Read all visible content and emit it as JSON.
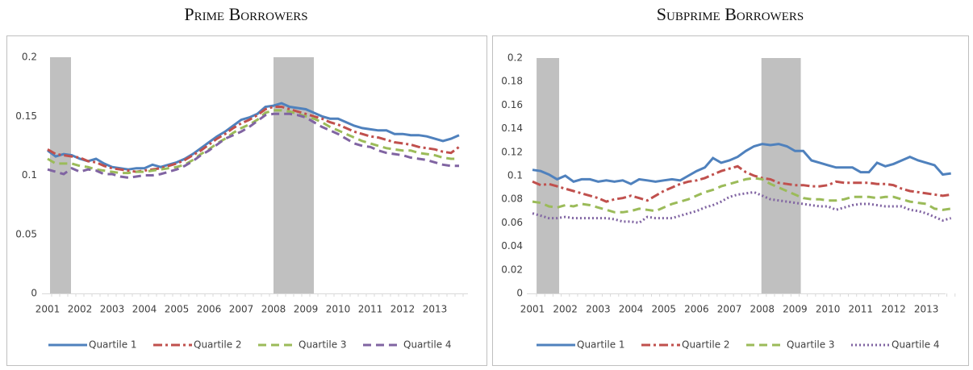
{
  "chart_data": [
    {
      "type": "line",
      "title": "Prime Borrowers",
      "categories": [
        "2001",
        null,
        null,
        null,
        "2002",
        null,
        null,
        null,
        "2003",
        null,
        null,
        null,
        "2004",
        null,
        null,
        null,
        "2005",
        null,
        null,
        null,
        "2006",
        null,
        null,
        null,
        "2007",
        null,
        null,
        null,
        "2008",
        null,
        null,
        null,
        "2009",
        null,
        null,
        null,
        "2010",
        null,
        null,
        null,
        "2011",
        null,
        null,
        null,
        "2012",
        null,
        null,
        null,
        "2013",
        null,
        null,
        null
      ],
      "ylim": [
        0,
        0.2
      ],
      "yticks": [
        0,
        0.05,
        0.1,
        0.15,
        0.2
      ],
      "shaded": [
        {
          "start": 0.3,
          "end": 2.9
        },
        {
          "start": 28,
          "end": 33
        }
      ],
      "shade_color": "#c0c0c0",
      "legend": "bottom",
      "series": [
        {
          "name": "Quartile 1",
          "color": "#4f81bd",
          "dash": "solid",
          "values": [
            0.121,
            0.116,
            0.118,
            0.117,
            0.114,
            0.112,
            0.114,
            0.11,
            0.107,
            0.106,
            0.105,
            0.106,
            0.106,
            0.109,
            0.107,
            0.109,
            0.111,
            0.114,
            0.118,
            0.123,
            0.128,
            0.133,
            0.137,
            0.142,
            0.147,
            0.149,
            0.152,
            0.158,
            0.159,
            0.161,
            0.158,
            0.157,
            0.156,
            0.153,
            0.15,
            0.148,
            0.148,
            0.145,
            0.142,
            0.14,
            0.139,
            0.138,
            0.138,
            0.135,
            0.135,
            0.134,
            0.134,
            0.133,
            0.131,
            0.129,
            0.131,
            0.134
          ]
        },
        {
          "name": "Quartile 2",
          "color": "#c0504d",
          "dash": "dashdot",
          "values": [
            0.122,
            0.118,
            0.117,
            0.116,
            0.115,
            0.112,
            0.111,
            0.108,
            0.106,
            0.105,
            0.104,
            0.103,
            0.104,
            0.105,
            0.106,
            0.108,
            0.11,
            0.113,
            0.117,
            0.121,
            0.126,
            0.131,
            0.135,
            0.14,
            0.144,
            0.147,
            0.151,
            0.156,
            0.158,
            0.158,
            0.156,
            0.154,
            0.152,
            0.15,
            0.148,
            0.145,
            0.143,
            0.14,
            0.137,
            0.135,
            0.133,
            0.132,
            0.13,
            0.128,
            0.127,
            0.126,
            0.124,
            0.123,
            0.122,
            0.12,
            0.119,
            0.124
          ]
        },
        {
          "name": "Quartile 3",
          "color": "#9bbb59",
          "dash": "dash",
          "values": [
            0.114,
            0.11,
            0.11,
            0.11,
            0.108,
            0.107,
            0.105,
            0.104,
            0.103,
            0.102,
            0.102,
            0.103,
            0.103,
            0.104,
            0.105,
            0.106,
            0.107,
            0.109,
            0.113,
            0.118,
            0.122,
            0.127,
            0.131,
            0.136,
            0.14,
            0.143,
            0.147,
            0.153,
            0.155,
            0.155,
            0.154,
            0.152,
            0.15,
            0.148,
            0.145,
            0.141,
            0.138,
            0.135,
            0.132,
            0.129,
            0.127,
            0.125,
            0.123,
            0.122,
            0.121,
            0.121,
            0.119,
            0.118,
            0.117,
            0.115,
            0.114,
            0.114
          ]
        },
        {
          "name": "Quartile 4",
          "color": "#8064a2",
          "dash": "dash",
          "values": [
            0.105,
            0.103,
            0.101,
            0.106,
            0.103,
            0.105,
            0.104,
            0.101,
            0.101,
            0.099,
            0.098,
            0.099,
            0.1,
            0.1,
            0.101,
            0.103,
            0.105,
            0.108,
            0.112,
            0.117,
            0.121,
            0.126,
            0.131,
            0.134,
            0.137,
            0.141,
            0.146,
            0.151,
            0.152,
            0.152,
            0.152,
            0.151,
            0.149,
            0.145,
            0.141,
            0.138,
            0.135,
            0.131,
            0.127,
            0.125,
            0.124,
            0.121,
            0.119,
            0.118,
            0.117,
            0.115,
            0.114,
            0.113,
            0.111,
            0.109,
            0.108,
            0.108
          ]
        }
      ]
    },
    {
      "type": "line",
      "title": "Subprime Borrowers",
      "categories": [
        "2001",
        null,
        null,
        null,
        "2002",
        null,
        null,
        null,
        "2003",
        null,
        null,
        null,
        "2004",
        null,
        null,
        null,
        "2005",
        null,
        null,
        null,
        "2006",
        null,
        null,
        null,
        "2007",
        null,
        null,
        null,
        "2008",
        null,
        null,
        null,
        "2009",
        null,
        null,
        null,
        "2010",
        null,
        null,
        null,
        "2011",
        null,
        null,
        null,
        "2012",
        null,
        null,
        null,
        "2013",
        null,
        null,
        null
      ],
      "ylim": [
        0,
        0.2
      ],
      "yticks": [
        0,
        0.02,
        0.04,
        0.06,
        0.08,
        0.1,
        0.12,
        0.14,
        0.16,
        0.18,
        0.2
      ],
      "shaded": [
        {
          "start": 0.5,
          "end": 3.25
        },
        {
          "start": 27.9,
          "end": 32.7
        }
      ],
      "shade_color": "#c0c0c0",
      "legend": "bottom",
      "series": [
        {
          "name": "Quartile 1",
          "color": "#4f81bd",
          "dash": "solid",
          "values": [
            0.105,
            0.104,
            0.101,
            0.097,
            0.1,
            0.095,
            0.097,
            0.097,
            0.095,
            0.096,
            0.095,
            0.096,
            0.093,
            0.097,
            0.096,
            0.095,
            0.096,
            0.097,
            0.096,
            0.1,
            0.104,
            0.107,
            0.115,
            0.111,
            0.113,
            0.116,
            0.121,
            0.125,
            0.127,
            0.126,
            0.127,
            0.125,
            0.121,
            0.121,
            0.113,
            0.111,
            0.109,
            0.107,
            0.107,
            0.107,
            0.103,
            0.103,
            0.111,
            0.108,
            0.11,
            0.113,
            0.116,
            0.113,
            0.111,
            0.109,
            0.101,
            0.102
          ]
        },
        {
          "name": "Quartile 2",
          "color": "#c0504d",
          "dash": "dashdot",
          "values": [
            0.095,
            0.092,
            0.093,
            0.091,
            0.089,
            0.087,
            0.085,
            0.083,
            0.081,
            0.078,
            0.08,
            0.081,
            0.083,
            0.081,
            0.079,
            0.083,
            0.087,
            0.09,
            0.093,
            0.095,
            0.096,
            0.098,
            0.101,
            0.104,
            0.106,
            0.108,
            0.103,
            0.1,
            0.098,
            0.097,
            0.094,
            0.093,
            0.092,
            0.092,
            0.091,
            0.091,
            0.092,
            0.095,
            0.094,
            0.094,
            0.094,
            0.094,
            0.093,
            0.093,
            0.092,
            0.089,
            0.087,
            0.086,
            0.085,
            0.084,
            0.083,
            0.084
          ]
        },
        {
          "name": "Quartile 3",
          "color": "#9bbb59",
          "dash": "dash",
          "values": [
            0.078,
            0.077,
            0.074,
            0.073,
            0.075,
            0.074,
            0.076,
            0.075,
            0.073,
            0.071,
            0.069,
            0.069,
            0.07,
            0.072,
            0.071,
            0.07,
            0.073,
            0.076,
            0.078,
            0.08,
            0.083,
            0.086,
            0.088,
            0.091,
            0.093,
            0.095,
            0.097,
            0.098,
            0.097,
            0.093,
            0.09,
            0.087,
            0.084,
            0.081,
            0.08,
            0.08,
            0.079,
            0.079,
            0.08,
            0.082,
            0.082,
            0.082,
            0.081,
            0.082,
            0.082,
            0.08,
            0.078,
            0.077,
            0.076,
            0.072,
            0.071,
            0.072
          ]
        },
        {
          "name": "Quartile 4",
          "color": "#8064a2",
          "dash": "dot",
          "values": [
            0.068,
            0.066,
            0.064,
            0.064,
            0.065,
            0.064,
            0.064,
            0.064,
            0.064,
            0.064,
            0.063,
            0.061,
            0.061,
            0.06,
            0.065,
            0.064,
            0.064,
            0.064,
            0.066,
            0.068,
            0.07,
            0.073,
            0.075,
            0.078,
            0.082,
            0.084,
            0.085,
            0.086,
            0.083,
            0.08,
            0.079,
            0.078,
            0.077,
            0.076,
            0.075,
            0.074,
            0.074,
            0.071,
            0.073,
            0.075,
            0.076,
            0.076,
            0.075,
            0.074,
            0.074,
            0.074,
            0.071,
            0.07,
            0.068,
            0.065,
            0.062,
            0.064
          ]
        }
      ]
    }
  ]
}
